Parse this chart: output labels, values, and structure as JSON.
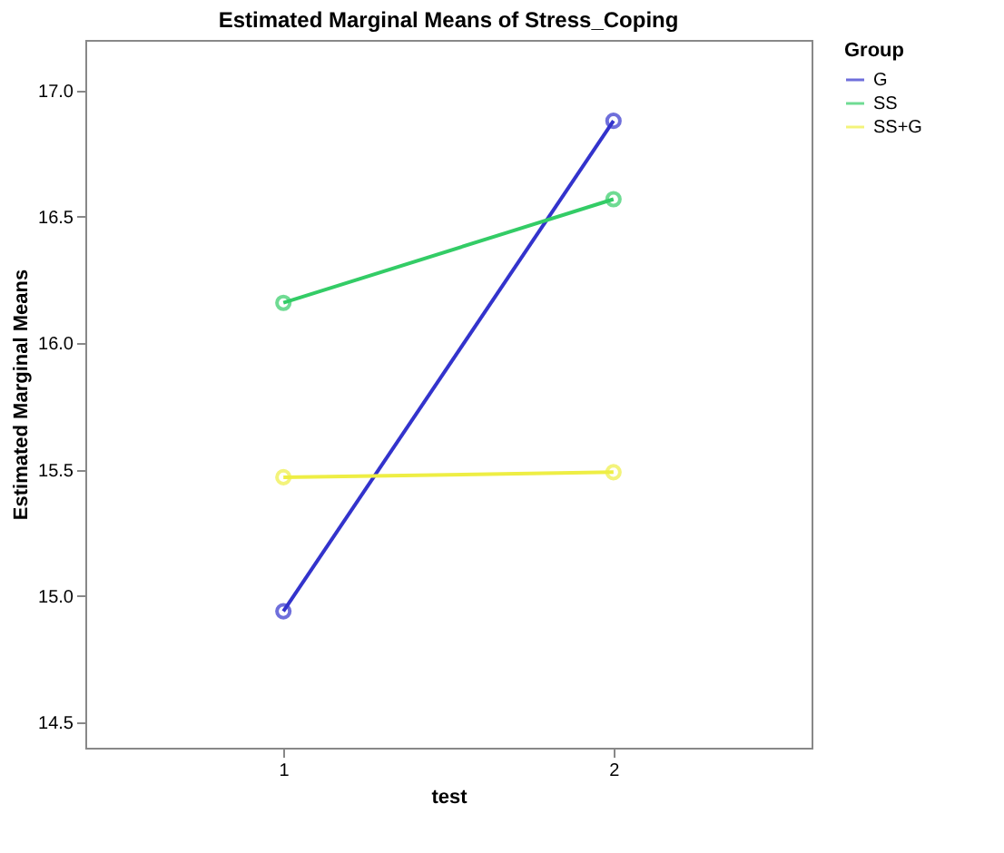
{
  "chart_data": {
    "type": "line",
    "title": "Estimated Marginal Means of Stress_Coping",
    "xlabel": "test",
    "ylabel": "Estimated Marginal Means",
    "legend_title": "Group",
    "categories": [
      "1",
      "2"
    ],
    "series": [
      {
        "name": "G",
        "color": "#3333cc",
        "values": [
          14.94,
          16.88
        ]
      },
      {
        "name": "SS",
        "color": "#33cc66",
        "values": [
          16.16,
          16.57
        ]
      },
      {
        "name": "SS+G",
        "color": "#eeee44",
        "values": [
          15.47,
          15.49
        ]
      }
    ],
    "ylim": [
      14.4,
      17.2
    ],
    "yticks": [
      {
        "value": 14.5,
        "label": "14.5"
      },
      {
        "value": 15,
        "label": "15.0"
      },
      {
        "value": 15.5,
        "label": "15.5"
      },
      {
        "value": 16,
        "label": "16.0"
      },
      {
        "value": 16.5,
        "label": "16.5"
      },
      {
        "value": 17,
        "label": "17.0"
      }
    ],
    "grid": false,
    "legend": "top right",
    "marker": "circle",
    "line_style": "solid"
  }
}
